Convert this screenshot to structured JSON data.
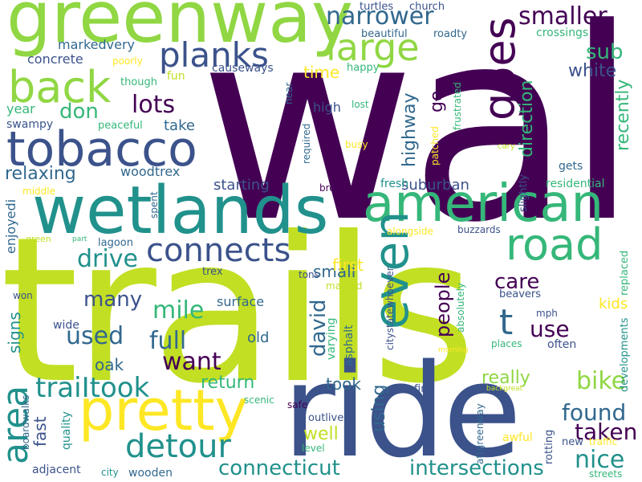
{
  "title": "",
  "palette": {
    "indigo": "#440154",
    "purple": "#3b528b",
    "blue": "#31688e",
    "teal": "#21918c",
    "green": "#35b779",
    "lime": "#90d743",
    "yellow": "#fde725",
    "chartreuse": "#c2df23"
  },
  "words": [
    {
      "text": "walk",
      "color": "#440154"
    },
    {
      "text": "trails",
      "color": "#c2df23"
    },
    {
      "text": "ride",
      "color": "#3b528b"
    },
    {
      "text": "greenway",
      "color": "#90d743"
    },
    {
      "text": "wetlands",
      "color": "#21918c"
    },
    {
      "text": "american",
      "color": "#35b779"
    },
    {
      "text": "tobacco",
      "color": "#3b528b"
    },
    {
      "text": "pretty",
      "color": "#fde725"
    },
    {
      "text": "back",
      "color": "#90d743"
    },
    {
      "text": "even",
      "color": "#21918c"
    },
    {
      "text": "road",
      "color": "#35b779"
    },
    {
      "text": "goes",
      "color": "#440154"
    },
    {
      "text": "large",
      "color": "#90d743"
    },
    {
      "text": "planks",
      "color": "#3b528b"
    },
    {
      "text": "connects",
      "color": "#3b528b"
    },
    {
      "text": "detour",
      "color": "#21918c"
    },
    {
      "text": "traiItook",
      "color": "#21918c"
    },
    {
      "text": "area",
      "color": "#21918c"
    },
    {
      "text": "narrower",
      "color": "#31688e"
    },
    {
      "text": "smaller",
      "color": "#440154"
    },
    {
      "text": "lots",
      "color": "#440154"
    },
    {
      "text": "used",
      "color": "#31688e"
    },
    {
      "text": "full",
      "color": "#31688e"
    },
    {
      "text": "want",
      "color": "#440154"
    },
    {
      "text": "mile",
      "color": "#35b779"
    },
    {
      "text": "drive",
      "color": "#21918c"
    },
    {
      "text": "connecticut",
      "color": "#21918c"
    },
    {
      "text": "intersections",
      "color": "#21918c"
    },
    {
      "text": "nice",
      "color": "#21918c"
    },
    {
      "text": "bike",
      "color": "#90d743"
    },
    {
      "text": "found",
      "color": "#31688e"
    },
    {
      "text": "taken",
      "color": "#440154"
    },
    {
      "text": "use",
      "color": "#440154"
    },
    {
      "text": "care",
      "color": "#440154"
    },
    {
      "text": "people",
      "color": "#440154"
    },
    {
      "text": "david",
      "color": "#31688e"
    },
    {
      "text": "t",
      "color": "#31688e"
    },
    {
      "text": "sub",
      "color": "#35b779"
    },
    {
      "text": "white",
      "color": "#3b528b"
    },
    {
      "text": "direction",
      "color": "#35b779"
    },
    {
      "text": "recently",
      "color": "#35b779"
    },
    {
      "text": "highway",
      "color": "#31688e"
    },
    {
      "text": "go",
      "color": "#440154"
    },
    {
      "text": "time",
      "color": "#fde725"
    },
    {
      "text": "relaxing",
      "color": "#31688e"
    },
    {
      "text": "don",
      "color": "#35b779"
    },
    {
      "text": "take",
      "color": "#31688e"
    },
    {
      "text": "starting",
      "color": "#3b528b"
    },
    {
      "text": "suburban",
      "color": "#3b528b"
    },
    {
      "text": "fresh",
      "color": "#21918c"
    },
    {
      "text": "many",
      "color": "#3b528b"
    },
    {
      "text": "small",
      "color": "#31688e"
    },
    {
      "text": "first",
      "color": "#fde725"
    },
    {
      "text": "well",
      "color": "#c2df23"
    },
    {
      "text": "using",
      "color": "#31688e"
    },
    {
      "text": "took",
      "color": "#31688e"
    },
    {
      "text": "return",
      "color": "#35b779"
    },
    {
      "text": "really",
      "color": "#90d743"
    },
    {
      "text": "fast",
      "color": "#3b528b"
    },
    {
      "text": "signs",
      "color": "#21918c"
    },
    {
      "text": "oak",
      "color": "#31688e"
    },
    {
      "text": "old",
      "color": "#31688e"
    },
    {
      "text": "surface",
      "color": "#31688e"
    },
    {
      "text": "kids",
      "color": "#fde725"
    },
    {
      "text": "markedvery",
      "color": "#31688e"
    },
    {
      "text": "concrete",
      "color": "#3b528b"
    },
    {
      "text": "causeways",
      "color": "#3b528b"
    },
    {
      "text": "woodtrex",
      "color": "#31688e"
    },
    {
      "text": "year",
      "color": "#35b779"
    },
    {
      "text": "swampy",
      "color": "#3b528b"
    },
    {
      "text": "enjoyedi",
      "color": "#31688e"
    },
    {
      "text": "high",
      "color": "#3b528b"
    },
    {
      "text": "though",
      "color": "#35b779"
    },
    {
      "text": "happy",
      "color": "#35b779"
    },
    {
      "text": "fun",
      "color": "#c2df23"
    },
    {
      "text": "peaceful",
      "color": "#35b779"
    },
    {
      "text": "poorly",
      "color": "#fde725"
    },
    {
      "text": "beautiful",
      "color": "#31688e"
    },
    {
      "text": "crossings",
      "color": "#35b779"
    },
    {
      "text": "roadty",
      "color": "#31688e"
    },
    {
      "text": "turtles",
      "color": "#3b528b"
    },
    {
      "text": "church",
      "color": "#3b528b"
    },
    {
      "text": "lost",
      "color": "#35b779"
    },
    {
      "text": "busy",
      "color": "#fde725"
    },
    {
      "text": "near",
      "color": "#31688e"
    },
    {
      "text": "required",
      "color": "#31688e"
    },
    {
      "text": "patched",
      "color": "#fde725"
    },
    {
      "text": "frustrated",
      "color": "#35b779"
    },
    {
      "text": "cary",
      "color": "#c2df23"
    },
    {
      "text": "gets",
      "color": "#31688e"
    },
    {
      "text": "slightly",
      "color": "#3b528b"
    },
    {
      "text": "residential",
      "color": "#35b779"
    },
    {
      "text": "broken",
      "color": "#440154"
    },
    {
      "text": "middle",
      "color": "#fde725"
    },
    {
      "text": "spent",
      "color": "#31688e"
    },
    {
      "text": "lagoon",
      "color": "#31688e"
    },
    {
      "text": "green",
      "color": "#c2df23"
    },
    {
      "text": "part",
      "color": "#35b779"
    },
    {
      "text": "alongside",
      "color": "#fde725"
    },
    {
      "text": "buzzards",
      "color": "#3b528b"
    },
    {
      "text": "replaced",
      "color": "#35b779"
    },
    {
      "text": "trex",
      "color": "#3b528b"
    },
    {
      "text": "tons",
      "color": "#3b528b"
    },
    {
      "text": "marked",
      "color": "#c2df23"
    },
    {
      "text": "won",
      "color": "#3b528b"
    },
    {
      "text": "citystatewhoever",
      "color": "#3b528b"
    },
    {
      "text": "absolutely",
      "color": "#35b779"
    },
    {
      "text": "varying",
      "color": "#35b779"
    },
    {
      "text": "asphalt",
      "color": "#31688e"
    },
    {
      "text": "beavers",
      "color": "#3b528b"
    },
    {
      "text": "mph",
      "color": "#3b528b"
    },
    {
      "text": "often",
      "color": "#3b528b"
    },
    {
      "text": "developments",
      "color": "#21918c"
    },
    {
      "text": "places",
      "color": "#35b779"
    },
    {
      "text": "morning",
      "color": "#fde725"
    },
    {
      "text": "wide",
      "color": "#3b528b"
    },
    {
      "text": "safe",
      "color": "#440154"
    },
    {
      "text": "scenic",
      "color": "#35b779"
    },
    {
      "text": "find",
      "color": "#3b528b"
    },
    {
      "text": "backgreat",
      "color": "#c2df23"
    },
    {
      "text": "outlive",
      "color": "#3b528b"
    },
    {
      "text": "level",
      "color": "#35b779"
    },
    {
      "text": "quality",
      "color": "#21918c"
    },
    {
      "text": "boardwalks",
      "color": "#31688e"
    },
    {
      "text": "adjacent",
      "color": "#3b528b"
    },
    {
      "text": "city",
      "color": "#21918c"
    },
    {
      "text": "wooden",
      "color": "#31688e"
    },
    {
      "text": "attgreenway",
      "color": "#31688e"
    },
    {
      "text": "awful",
      "color": "#fde725"
    },
    {
      "text": "rotting",
      "color": "#3b528b"
    },
    {
      "text": "new",
      "color": "#3b528b"
    },
    {
      "text": "traffic",
      "color": "#fde725"
    },
    {
      "text": "streets",
      "color": "#35b779"
    }
  ]
}
